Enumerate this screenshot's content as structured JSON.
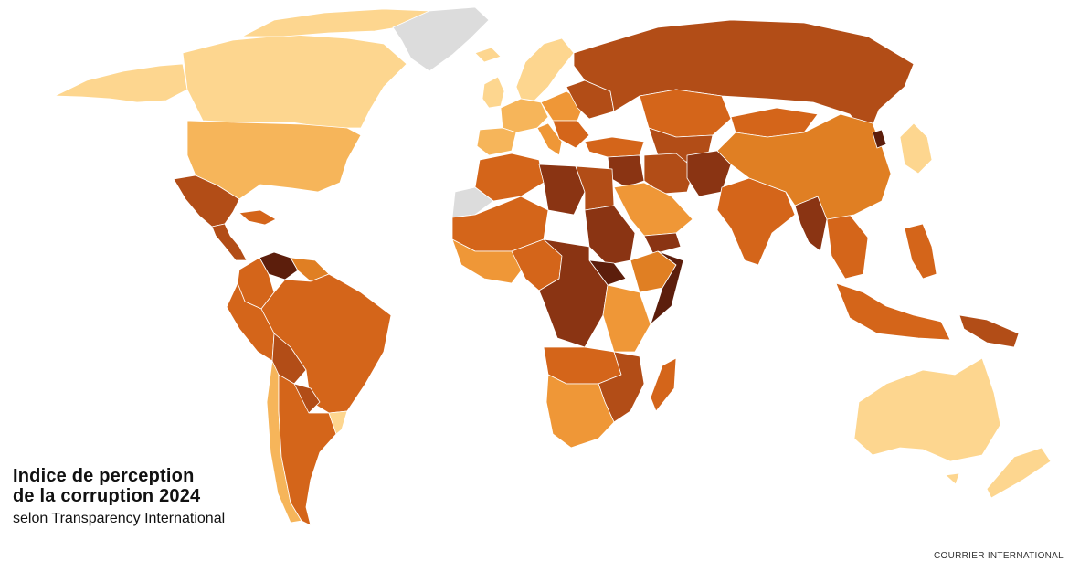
{
  "map": {
    "title_line1": "Indice de perception",
    "title_line2": "de la corruption 2024",
    "subtitle": "selon Transparency International",
    "credit": "COURRIER INTERNATIONAL",
    "no_data_color": "#dcdcdc",
    "color_scale": [
      "#fdd68f",
      "#f6b55a",
      "#ef9737",
      "#e07f23",
      "#d4651a",
      "#b24d17",
      "#8a3413",
      "#5c1e0c"
    ]
  }
}
